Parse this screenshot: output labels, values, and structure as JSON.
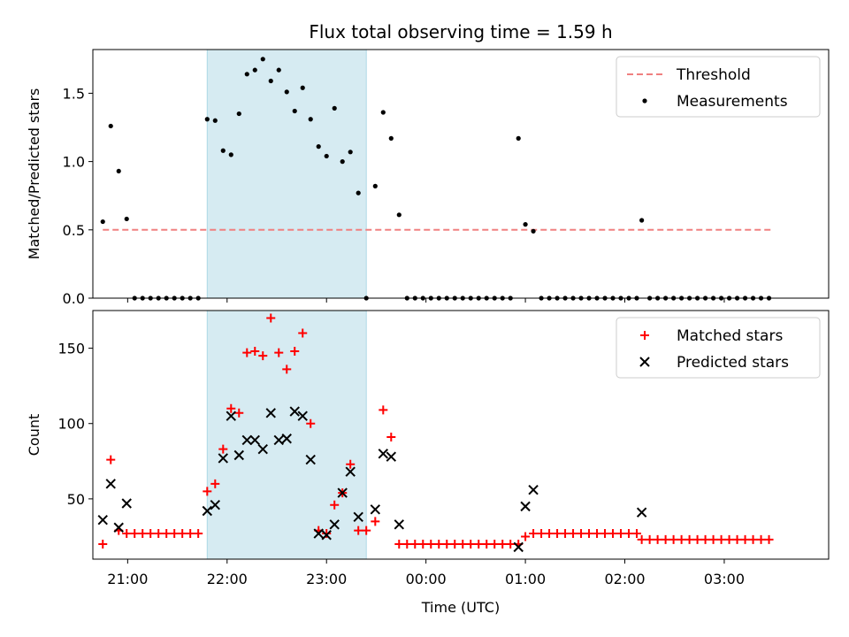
{
  "title": "Flux total observing time = 1.59 h",
  "colors": {
    "threshold": "#f08080",
    "measurements": "#000000",
    "matched": "#ff0000",
    "predicted": "#000000",
    "highlight": "#add8e6"
  },
  "chart_data": [
    {
      "type": "scatter",
      "panel": "top",
      "ylabel": "Matched/Predicted stars",
      "xlim": [
        20.65,
        28.05
      ],
      "ylim": [
        0,
        1.82
      ],
      "x_tick_labels_visible": false,
      "yticks": [
        0.0,
        0.5,
        1.0,
        1.5
      ],
      "ytick_labels": [
        "0.0",
        "0.5",
        "1.0",
        "1.5"
      ],
      "highlight_span": [
        21.8,
        23.4
      ],
      "legend": {
        "position": "top-right",
        "entries": [
          "Threshold",
          "Measurements"
        ]
      },
      "threshold": {
        "name": "Threshold",
        "y": 0.5,
        "x": [
          20.75,
          27.48
        ],
        "style": "dashed"
      },
      "series": [
        {
          "name": "Measurements",
          "marker": "dot",
          "points": [
            [
              20.75,
              0.56
            ],
            [
              20.83,
              1.26
            ],
            [
              20.91,
              0.93
            ],
            [
              20.99,
              0.58
            ],
            [
              21.07,
              0
            ],
            [
              21.15,
              0
            ],
            [
              21.23,
              0
            ],
            [
              21.31,
              0
            ],
            [
              21.39,
              0
            ],
            [
              21.47,
              0
            ],
            [
              21.55,
              0
            ],
            [
              21.63,
              0
            ],
            [
              21.71,
              0
            ],
            [
              21.8,
              1.31
            ],
            [
              21.88,
              1.3
            ],
            [
              21.96,
              1.08
            ],
            [
              22.04,
              1.05
            ],
            [
              22.12,
              1.35
            ],
            [
              22.2,
              1.64
            ],
            [
              22.28,
              1.67
            ],
            [
              22.36,
              1.75
            ],
            [
              22.44,
              1.59
            ],
            [
              22.52,
              1.67
            ],
            [
              22.6,
              1.51
            ],
            [
              22.68,
              1.37
            ],
            [
              22.76,
              1.54
            ],
            [
              22.84,
              1.31
            ],
            [
              22.92,
              1.11
            ],
            [
              23.0,
              1.04
            ],
            [
              23.08,
              1.39
            ],
            [
              23.16,
              1.0
            ],
            [
              23.24,
              1.07
            ],
            [
              23.32,
              0.77
            ],
            [
              23.4,
              0
            ],
            [
              23.49,
              0.82
            ],
            [
              23.57,
              1.36
            ],
            [
              23.65,
              1.17
            ],
            [
              23.73,
              0.61
            ],
            [
              23.81,
              0
            ],
            [
              23.89,
              0
            ],
            [
              23.97,
              0
            ],
            [
              24.05,
              0
            ],
            [
              24.13,
              0
            ],
            [
              24.21,
              0
            ],
            [
              24.29,
              0
            ],
            [
              24.37,
              0
            ],
            [
              24.45,
              0
            ],
            [
              24.53,
              0
            ],
            [
              24.61,
              0
            ],
            [
              24.69,
              0
            ],
            [
              24.77,
              0
            ],
            [
              24.85,
              0
            ],
            [
              24.93,
              1.17
            ],
            [
              25.0,
              0.54
            ],
            [
              25.08,
              0.49
            ],
            [
              25.16,
              0
            ],
            [
              25.24,
              0
            ],
            [
              25.32,
              0
            ],
            [
              25.4,
              0
            ],
            [
              25.48,
              0
            ],
            [
              25.56,
              0
            ],
            [
              25.64,
              0
            ],
            [
              25.72,
              0
            ],
            [
              25.8,
              0
            ],
            [
              25.88,
              0
            ],
            [
              25.96,
              0
            ],
            [
              26.04,
              0
            ],
            [
              26.12,
              0
            ],
            [
              26.17,
              0.57
            ],
            [
              26.25,
              0
            ],
            [
              26.33,
              0
            ],
            [
              26.41,
              0
            ],
            [
              26.49,
              0
            ],
            [
              26.57,
              0
            ],
            [
              26.65,
              0
            ],
            [
              26.73,
              0
            ],
            [
              26.81,
              0
            ],
            [
              26.89,
              0
            ],
            [
              26.97,
              0
            ],
            [
              27.05,
              0
            ],
            [
              27.13,
              0
            ],
            [
              27.21,
              0
            ],
            [
              27.29,
              0
            ],
            [
              27.37,
              0
            ],
            [
              27.45,
              0
            ]
          ]
        }
      ]
    },
    {
      "type": "scatter",
      "panel": "bottom",
      "ylabel": "Count",
      "xlabel": "Time (UTC)",
      "xlim": [
        20.65,
        28.05
      ],
      "ylim": [
        10,
        175
      ],
      "xticks": [
        21,
        22,
        23,
        24,
        25,
        26,
        27
      ],
      "xtick_labels": [
        "21:00",
        "22:00",
        "23:00",
        "00:00",
        "01:00",
        "02:00",
        "03:00"
      ],
      "yticks": [
        50,
        100,
        150
      ],
      "ytick_labels": [
        "50",
        "100",
        "150"
      ],
      "highlight_span": [
        21.8,
        23.4
      ],
      "legend": {
        "position": "top-right",
        "entries": [
          "Matched stars",
          "Predicted stars"
        ]
      },
      "series": [
        {
          "name": "Matched stars",
          "marker": "plus",
          "points": [
            [
              20.75,
              20
            ],
            [
              20.83,
              76
            ],
            [
              20.91,
              29
            ],
            [
              20.99,
              27
            ],
            [
              21.07,
              27
            ],
            [
              21.15,
              27
            ],
            [
              21.23,
              27
            ],
            [
              21.31,
              27
            ],
            [
              21.39,
              27
            ],
            [
              21.47,
              27
            ],
            [
              21.55,
              27
            ],
            [
              21.63,
              27
            ],
            [
              21.71,
              27
            ],
            [
              21.8,
              55
            ],
            [
              21.88,
              60
            ],
            [
              21.96,
              83
            ],
            [
              22.04,
              110
            ],
            [
              22.12,
              107
            ],
            [
              22.2,
              147
            ],
            [
              22.28,
              148
            ],
            [
              22.36,
              145
            ],
            [
              22.44,
              170
            ],
            [
              22.52,
              147
            ],
            [
              22.6,
              136
            ],
            [
              22.68,
              148
            ],
            [
              22.76,
              160
            ],
            [
              22.84,
              100
            ],
            [
              22.92,
              29
            ],
            [
              23.0,
              27
            ],
            [
              23.08,
              46
            ],
            [
              23.16,
              54
            ],
            [
              23.24,
              73
            ],
            [
              23.32,
              29
            ],
            [
              23.4,
              29
            ],
            [
              23.49,
              35
            ],
            [
              23.57,
              109
            ],
            [
              23.65,
              91
            ],
            [
              23.73,
              20
            ],
            [
              23.81,
              20
            ],
            [
              23.89,
              20
            ],
            [
              23.97,
              20
            ],
            [
              24.05,
              20
            ],
            [
              24.13,
              20
            ],
            [
              24.21,
              20
            ],
            [
              24.29,
              20
            ],
            [
              24.37,
              20
            ],
            [
              24.45,
              20
            ],
            [
              24.53,
              20
            ],
            [
              24.61,
              20
            ],
            [
              24.69,
              20
            ],
            [
              24.77,
              20
            ],
            [
              24.85,
              20
            ],
            [
              24.93,
              20
            ],
            [
              25.0,
              25
            ],
            [
              25.08,
              27
            ],
            [
              25.16,
              27
            ],
            [
              25.24,
              27
            ],
            [
              25.32,
              27
            ],
            [
              25.4,
              27
            ],
            [
              25.48,
              27
            ],
            [
              25.56,
              27
            ],
            [
              25.64,
              27
            ],
            [
              25.72,
              27
            ],
            [
              25.8,
              27
            ],
            [
              25.88,
              27
            ],
            [
              25.96,
              27
            ],
            [
              26.04,
              27
            ],
            [
              26.12,
              27
            ],
            [
              26.17,
              23
            ],
            [
              26.25,
              23
            ],
            [
              26.33,
              23
            ],
            [
              26.41,
              23
            ],
            [
              26.49,
              23
            ],
            [
              26.57,
              23
            ],
            [
              26.65,
              23
            ],
            [
              26.73,
              23
            ],
            [
              26.81,
              23
            ],
            [
              26.89,
              23
            ],
            [
              26.97,
              23
            ],
            [
              27.05,
              23
            ],
            [
              27.13,
              23
            ],
            [
              27.21,
              23
            ],
            [
              27.29,
              23
            ],
            [
              27.37,
              23
            ],
            [
              27.45,
              23
            ]
          ]
        },
        {
          "name": "Predicted stars",
          "marker": "x",
          "points": [
            [
              20.75,
              36
            ],
            [
              20.83,
              60
            ],
            [
              20.91,
              31
            ],
            [
              20.99,
              47
            ],
            [
              21.8,
              42
            ],
            [
              21.88,
              46
            ],
            [
              21.96,
              77
            ],
            [
              22.04,
              105
            ],
            [
              22.12,
              79
            ],
            [
              22.2,
              89
            ],
            [
              22.28,
              89
            ],
            [
              22.36,
              83
            ],
            [
              22.44,
              107
            ],
            [
              22.52,
              89
            ],
            [
              22.6,
              90
            ],
            [
              22.68,
              108
            ],
            [
              22.76,
              105
            ],
            [
              22.84,
              76
            ],
            [
              22.92,
              27
            ],
            [
              23.0,
              26
            ],
            [
              23.08,
              33
            ],
            [
              23.16,
              54
            ],
            [
              23.24,
              68
            ],
            [
              23.32,
              38
            ],
            [
              23.49,
              43
            ],
            [
              23.57,
              80
            ],
            [
              23.65,
              78
            ],
            [
              23.73,
              33
            ],
            [
              24.93,
              18
            ],
            [
              25.0,
              45
            ],
            [
              25.08,
              56
            ],
            [
              26.17,
              41
            ]
          ]
        }
      ]
    }
  ]
}
